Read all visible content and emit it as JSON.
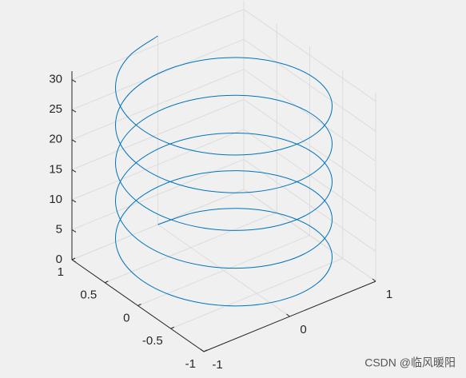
{
  "chart_data": {
    "type": "line3d",
    "series": [
      {
        "color": "#0072bd",
        "x": [
          0,
          0.383,
          0.707,
          0.924,
          1,
          0.924,
          0.707,
          0.383,
          0,
          -0.383,
          -0.707,
          -0.924,
          -1,
          -0.924,
          -0.707,
          -0.383,
          0,
          0.383,
          0.707,
          0.924,
          1,
          0.924,
          0.707,
          0.383,
          0,
          -0.383,
          -0.707,
          -0.924,
          -1,
          -0.924,
          -0.707,
          -0.383,
          0,
          0.383,
          0.707,
          0.924,
          1,
          0.924,
          0.707,
          0.383,
          0,
          -0.383,
          -0.707,
          -0.924,
          -1,
          -0.924,
          -0.707,
          -0.383,
          0,
          0.383,
          0.707,
          0.924,
          1,
          0.924,
          0.707,
          0.383,
          0,
          -0.383,
          -0.707,
          -0.924,
          -1,
          -0.924,
          -0.707,
          -0.383,
          0,
          0.383,
          0.707,
          0.924,
          1,
          0.924,
          0.707,
          0.383,
          0,
          -0.383,
          -0.707,
          -0.924,
          -1,
          -0.924,
          -0.707,
          -0.383,
          0
        ],
        "y": [
          1,
          0.924,
          0.707,
          0.383,
          0,
          -0.383,
          -0.707,
          -0.924,
          -1,
          -0.924,
          -0.707,
          -0.383,
          0,
          0.383,
          0.707,
          0.924,
          1,
          0.924,
          0.707,
          0.383,
          0,
          -0.383,
          -0.707,
          -0.924,
          -1,
          -0.924,
          -0.707,
          -0.383,
          0,
          0.383,
          0.707,
          0.924,
          1,
          0.924,
          0.707,
          0.383,
          0,
          -0.383,
          -0.707,
          -0.924,
          -1,
          -0.924,
          -0.707,
          -0.383,
          0,
          0.383,
          0.707,
          0.924,
          1,
          0.924,
          0.707,
          0.383,
          0,
          -0.383,
          -0.707,
          -0.924,
          -1,
          -0.924,
          -0.707,
          -0.383,
          0,
          0.383,
          0.707,
          0.924,
          1,
          0.924,
          0.707,
          0.383,
          0,
          -0.383,
          -0.707,
          -0.924,
          -1,
          -0.924,
          -0.707,
          -0.383,
          0,
          0.383,
          0.707,
          0.924,
          1
        ],
        "z": [
          0,
          0.39,
          0.79,
          1.18,
          1.57,
          1.96,
          2.36,
          2.75,
          3.14,
          3.53,
          3.93,
          4.32,
          4.71,
          5.11,
          5.5,
          5.89,
          6.28,
          6.68,
          7.07,
          7.46,
          7.85,
          8.25,
          8.64,
          9.03,
          9.42,
          9.82,
          10.21,
          10.6,
          11,
          11.39,
          11.78,
          12.17,
          12.57,
          12.96,
          13.35,
          13.74,
          14.14,
          14.53,
          14.92,
          15.32,
          15.71,
          16.1,
          16.49,
          16.89,
          17.28,
          17.67,
          18.06,
          18.46,
          18.85,
          19.24,
          19.63,
          20.03,
          20.42,
          20.81,
          21.21,
          21.6,
          21.99,
          22.38,
          22.78,
          23.17,
          23.56,
          23.95,
          24.35,
          24.74,
          25.13,
          25.53,
          25.92,
          26.31,
          26.7,
          27.1,
          27.49,
          27.88,
          28.27,
          28.67,
          29.06,
          29.45,
          29.85,
          30.24,
          30.63,
          31.02,
          31.42
        ]
      }
    ],
    "xlim": [
      -1,
      1
    ],
    "xticks": [
      -1,
      0,
      1
    ],
    "ylim": [
      -1,
      1
    ],
    "yticks": [
      -1,
      -0.5,
      0,
      0.5,
      1
    ],
    "zlim": [
      0,
      31.42
    ],
    "zticks": [
      0,
      5,
      10,
      15,
      20,
      25,
      30
    ],
    "grid": true,
    "watermark": "CSDN @临风暖阳"
  }
}
